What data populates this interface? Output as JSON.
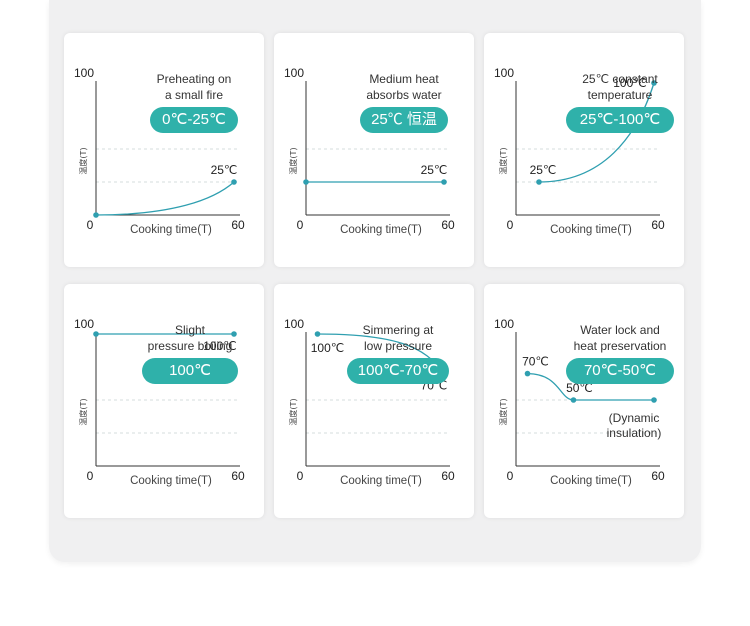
{
  "colors": {
    "accent": "#2fb1aa",
    "curve": "#2f9fb0",
    "grid": "#d5dcdc",
    "axis": "#333333"
  },
  "chart_data": [
    {
      "type": "line",
      "title": "Preheating on\na small fire",
      "badge": "0℃-25℃",
      "ylabel": "温度(T)",
      "xlabel": "Cooking time(T)",
      "y_tick": "100",
      "origin_tick": "0",
      "x_tick": "60",
      "xlim": [
        0,
        60
      ],
      "ylim": [
        0,
        100
      ],
      "series": [
        {
          "points": [
            [
              0,
              0
            ],
            [
              60,
              25
            ]
          ],
          "shape": "rise"
        }
      ],
      "labels": [
        {
          "text": "25℃",
          "at": [
            60,
            25
          ]
        }
      ]
    },
    {
      "type": "line",
      "title": "Medium heat\nabsorbs water",
      "badge": "25℃ 恒温",
      "ylabel": "温度(T)",
      "xlabel": "Cooking time(T)",
      "y_tick": "100",
      "origin_tick": "0",
      "x_tick": "60",
      "xlim": [
        0,
        60
      ],
      "ylim": [
        0,
        100
      ],
      "series": [
        {
          "points": [
            [
              0,
              25
            ],
            [
              60,
              25
            ]
          ],
          "shape": "flat"
        }
      ],
      "labels": [
        {
          "text": "25℃",
          "at": [
            60,
            25
          ]
        }
      ]
    },
    {
      "type": "line",
      "title": "25℃ constant\ntemperature",
      "badge": "25℃-100℃",
      "ylabel": "温度(T)",
      "xlabel": "Cooking time(T)",
      "y_tick": "100",
      "origin_tick": "0",
      "x_tick": "60",
      "xlim": [
        0,
        60
      ],
      "ylim": [
        0,
        100
      ],
      "series": [
        {
          "points": [
            [
              10,
              25
            ],
            [
              60,
              100
            ]
          ],
          "shape": "rise"
        }
      ],
      "labels": [
        {
          "text": "25℃",
          "at": [
            10,
            25
          ]
        },
        {
          "text": "100℃",
          "at": [
            60,
            100
          ]
        }
      ]
    },
    {
      "type": "line",
      "title": "Slight\npressure boiling",
      "badge": "100℃",
      "ylabel": "温度(T)",
      "xlabel": "Cooking time(T)",
      "y_tick": "100",
      "origin_tick": "0",
      "x_tick": "60",
      "xlim": [
        0,
        60
      ],
      "ylim": [
        0,
        100
      ],
      "series": [
        {
          "points": [
            [
              0,
              100
            ],
            [
              60,
              100
            ]
          ],
          "shape": "flat"
        }
      ],
      "labels": [
        {
          "text": "100℃",
          "at": [
            60,
            100
          ]
        }
      ]
    },
    {
      "type": "line",
      "title": "Simmering at\nlow pressure",
      "badge": "100℃-70℃",
      "ylabel": "温度(T)",
      "xlabel": "Cooking time(T)",
      "y_tick": "100",
      "origin_tick": "0",
      "x_tick": "60",
      "xlim": [
        0,
        60
      ],
      "ylim": [
        0,
        100
      ],
      "series": [
        {
          "points": [
            [
              5,
              100
            ],
            [
              60,
              70
            ]
          ],
          "shape": "fall"
        }
      ],
      "labels": [
        {
          "text": "100℃",
          "at": [
            5,
            100
          ]
        },
        {
          "text": "70℃",
          "at": [
            60,
            70
          ]
        }
      ]
    },
    {
      "type": "line",
      "title": "Water lock and\nheat preservation",
      "badge": "70℃-50℃",
      "ylabel": "温度(T)",
      "xlabel": "Cooking time(T)",
      "y_tick": "100",
      "origin_tick": "0",
      "x_tick": "60",
      "xlim": [
        0,
        60
      ],
      "ylim": [
        0,
        100
      ],
      "series": [
        {
          "points": [
            [
              5,
              70
            ],
            [
              25,
              50
            ],
            [
              60,
              50
            ]
          ],
          "shape": "step"
        }
      ],
      "labels": [
        {
          "text": "70℃",
          "at": [
            5,
            70
          ]
        },
        {
          "text": "50℃",
          "at": [
            25,
            50
          ]
        }
      ],
      "note": "(Dynamic\ninsulation)"
    }
  ]
}
